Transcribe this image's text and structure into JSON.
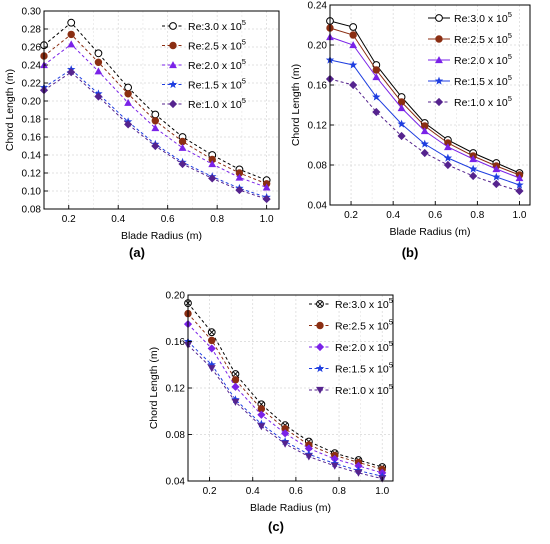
{
  "chart_data": [
    {
      "type": "line",
      "panel_label": "(a)",
      "xlabel": "Blade Radius (m)",
      "ylabel": "Chord Length (m)",
      "xlim": [
        0.1,
        1.05
      ],
      "ylim": [
        0.08,
        0.3
      ],
      "x_ticks": [
        "0.2",
        "0.4",
        "0.6",
        "0.8",
        "1.0"
      ],
      "y_ticks": [
        "0.08",
        "0.10",
        "0.12",
        "0.14",
        "0.16",
        "0.18",
        "0.20",
        "0.22",
        "0.24",
        "0.26",
        "0.28",
        "0.30"
      ],
      "grid": true,
      "legend_position": "top-right",
      "x": [
        0.1,
        0.21,
        0.32,
        0.44,
        0.55,
        0.66,
        0.78,
        0.89,
        1.0
      ],
      "series": [
        {
          "name": "Re:3.0 x 10",
          "exp": "5",
          "color": "#000000",
          "dashed": true,
          "marker": "circle-open",
          "values": [
            0.262,
            0.287,
            0.253,
            0.215,
            0.185,
            0.16,
            0.14,
            0.124,
            0.112
          ]
        },
        {
          "name": "Re:2.5 x 10",
          "exp": "5",
          "color": "#8b2e12",
          "dashed": true,
          "marker": "circle",
          "values": [
            0.25,
            0.274,
            0.243,
            0.208,
            0.178,
            0.155,
            0.135,
            0.12,
            0.108
          ]
        },
        {
          "name": "Re:2.0 x 10",
          "exp": "5",
          "color": "#7a22e8",
          "dashed": true,
          "marker": "triangle",
          "values": [
            0.24,
            0.263,
            0.233,
            0.198,
            0.17,
            0.148,
            0.13,
            0.115,
            0.104
          ]
        },
        {
          "name": "Re:1.5 x 10",
          "exp": "5",
          "color": "#1f3ee0",
          "dashed": true,
          "marker": "star",
          "values": [
            0.215,
            0.235,
            0.208,
            0.177,
            0.152,
            0.132,
            0.116,
            0.103,
            0.093
          ]
        },
        {
          "name": "Re:1.0 x 10",
          "exp": "5",
          "color": "#55238e",
          "dashed": true,
          "marker": "diamond",
          "values": [
            0.212,
            0.232,
            0.205,
            0.174,
            0.15,
            0.13,
            0.114,
            0.101,
            0.091
          ]
        }
      ]
    },
    {
      "type": "line",
      "panel_label": "(b)",
      "xlabel": "Blade Radius (m)",
      "ylabel": "Chord Length (m)",
      "xlim": [
        0.1,
        1.05
      ],
      "ylim": [
        0.04,
        0.24
      ],
      "x_ticks": [
        "0.2",
        "0.4",
        "0.6",
        "0.8",
        "1.0"
      ],
      "y_ticks": [
        "0.04",
        "0.08",
        "0.12",
        "0.16",
        "0.20",
        "0.24"
      ],
      "grid": true,
      "legend_position": "top-right",
      "x": [
        0.1,
        0.21,
        0.32,
        0.44,
        0.55,
        0.66,
        0.78,
        0.89,
        1.0
      ],
      "series": [
        {
          "name": "Re:3.0 x 10",
          "exp": "5",
          "color": "#000000",
          "dashed": false,
          "marker": "circle-open",
          "values": [
            0.224,
            0.218,
            0.18,
            0.148,
            0.122,
            0.105,
            0.092,
            0.082,
            0.072
          ]
        },
        {
          "name": "Re:2.5 x 10",
          "exp": "5",
          "color": "#8b2e12",
          "dashed": false,
          "marker": "circle",
          "values": [
            0.217,
            0.21,
            0.175,
            0.143,
            0.119,
            0.102,
            0.089,
            0.079,
            0.07
          ]
        },
        {
          "name": "Re:2.0 x 10",
          "exp": "5",
          "color": "#7a22e8",
          "dashed": false,
          "marker": "triangle",
          "values": [
            0.208,
            0.2,
            0.168,
            0.137,
            0.114,
            0.098,
            0.086,
            0.076,
            0.067
          ]
        },
        {
          "name": "Re:1.5 x 10",
          "exp": "5",
          "color": "#1f3ee0",
          "dashed": false,
          "marker": "star",
          "values": [
            0.185,
            0.18,
            0.148,
            0.121,
            0.101,
            0.087,
            0.076,
            0.068,
            0.06
          ]
        },
        {
          "name": "Re:1.0 x 10",
          "exp": "5",
          "color": "#55238e",
          "dashed": true,
          "marker": "diamond",
          "values": [
            0.166,
            0.16,
            0.133,
            0.109,
            0.092,
            0.08,
            0.069,
            0.061,
            0.054
          ]
        }
      ]
    },
    {
      "type": "line",
      "panel_label": "(c)",
      "xlabel": "Blade Radius (m)",
      "ylabel": "Chord Length (m)",
      "xlim": [
        0.1,
        1.05
      ],
      "ylim": [
        0.04,
        0.2
      ],
      "x_ticks": [
        "0.2",
        "0.4",
        "0.6",
        "0.8",
        "1.0"
      ],
      "y_ticks": [
        "0.04",
        "0.08",
        "0.12",
        "0.16",
        "0.20"
      ],
      "grid": true,
      "legend_position": "top-right",
      "x": [
        0.1,
        0.21,
        0.32,
        0.44,
        0.55,
        0.66,
        0.78,
        0.89,
        1.0
      ],
      "series": [
        {
          "name": "Re:3.0 x 10",
          "exp": "5",
          "color": "#000000",
          "dashed": true,
          "marker": "circle-x",
          "values": [
            0.193,
            0.168,
            0.132,
            0.106,
            0.088,
            0.074,
            0.064,
            0.058,
            0.052
          ]
        },
        {
          "name": "Re:2.5 x 10",
          "exp": "5",
          "color": "#8b2e12",
          "dashed": true,
          "marker": "circle",
          "values": [
            0.184,
            0.161,
            0.127,
            0.102,
            0.085,
            0.071,
            0.062,
            0.056,
            0.05
          ]
        },
        {
          "name": "Re:2.0 x 10",
          "exp": "5",
          "color": "#7a22e8",
          "dashed": true,
          "marker": "diamond",
          "values": [
            0.175,
            0.154,
            0.121,
            0.097,
            0.081,
            0.068,
            0.059,
            0.053,
            0.047
          ]
        },
        {
          "name": "Re:1.5 x 10",
          "exp": "5",
          "color": "#1f3ee0",
          "dashed": true,
          "marker": "star",
          "values": [
            0.16,
            0.14,
            0.11,
            0.089,
            0.074,
            0.063,
            0.055,
            0.049,
            0.044
          ]
        },
        {
          "name": "Re:1.0 x 10",
          "exp": "5",
          "color": "#55238e",
          "dashed": true,
          "marker": "triangle-down",
          "values": [
            0.157,
            0.137,
            0.108,
            0.087,
            0.072,
            0.061,
            0.053,
            0.047,
            0.042
          ]
        }
      ]
    }
  ]
}
